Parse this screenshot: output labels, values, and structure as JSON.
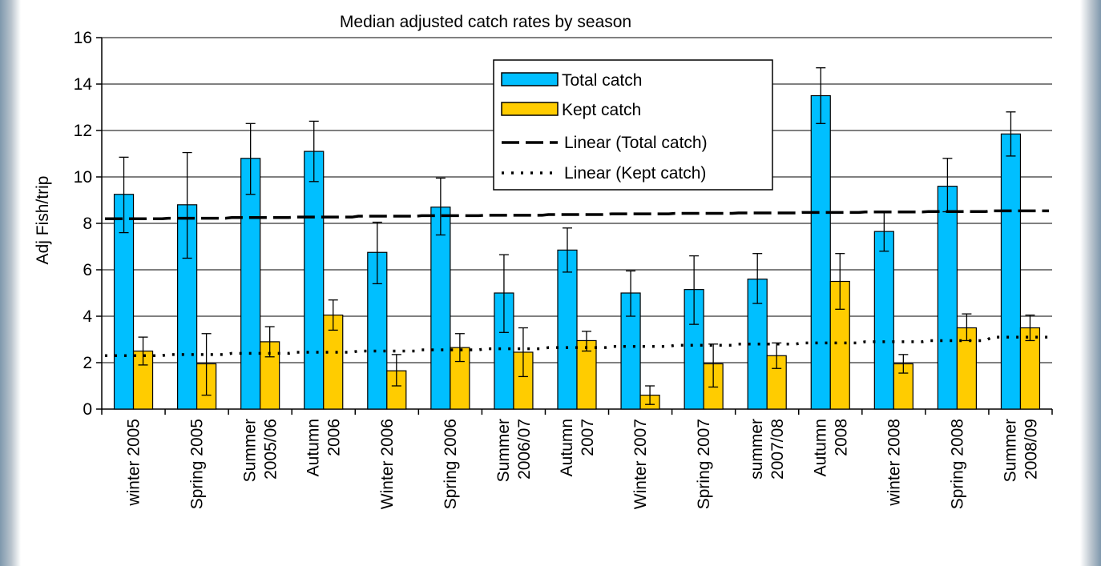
{
  "chart_data": {
    "type": "bar",
    "title": "Median adjusted catch rates by season",
    "xlabel": "",
    "ylabel": "Adj Fish/trip",
    "ylim": [
      0,
      16
    ],
    "yticks": [
      0,
      2,
      4,
      6,
      8,
      10,
      12,
      14,
      16
    ],
    "grid": true,
    "legend_position": "top-right (inside plot)",
    "categories": [
      [
        "winter 2005"
      ],
      [
        "Spring 2005"
      ],
      [
        "Summer",
        "2005/06"
      ],
      [
        "Autumn",
        "2006"
      ],
      [
        "Winter 2006"
      ],
      [
        "Spring 2006"
      ],
      [
        "Summer",
        "2006/07"
      ],
      [
        "Autumn",
        "2007"
      ],
      [
        "Winter 2007"
      ],
      [
        "Spring 2007"
      ],
      [
        "summer",
        "2007/08"
      ],
      [
        "Autumn",
        "2008"
      ],
      [
        "winter 2008"
      ],
      [
        "Spring 2008"
      ],
      [
        "Summer",
        "2008/09"
      ]
    ],
    "series": [
      {
        "name": "Total catch",
        "color": "#00bfff",
        "values": [
          9.25,
          8.8,
          10.8,
          11.1,
          6.75,
          8.7,
          5.0,
          6.85,
          5.0,
          5.15,
          5.6,
          13.5,
          7.65,
          9.6,
          11.85
        ],
        "error_low": [
          7.6,
          6.5,
          9.25,
          9.8,
          5.4,
          7.5,
          3.3,
          5.9,
          4.0,
          3.65,
          4.55,
          12.3,
          6.8,
          8.5,
          10.9
        ],
        "error_high": [
          10.85,
          11.05,
          12.3,
          12.4,
          8.05,
          9.95,
          6.65,
          7.8,
          5.95,
          6.6,
          6.7,
          14.7,
          8.5,
          10.8,
          12.8
        ]
      },
      {
        "name": "Kept catch",
        "color": "#ffcc00",
        "values": [
          2.5,
          1.95,
          2.9,
          4.05,
          1.65,
          2.65,
          2.45,
          2.95,
          0.6,
          1.95,
          2.3,
          5.5,
          1.95,
          3.5,
          3.5
        ],
        "error_low": [
          1.9,
          0.6,
          2.25,
          3.4,
          1.0,
          2.05,
          1.4,
          2.5,
          0.2,
          0.95,
          1.75,
          4.3,
          1.55,
          2.95,
          2.95
        ],
        "error_high": [
          3.1,
          3.25,
          3.55,
          4.7,
          2.35,
          3.25,
          3.5,
          3.35,
          1.0,
          2.8,
          2.85,
          6.7,
          2.35,
          4.1,
          4.05
        ]
      }
    ],
    "trendlines": [
      {
        "name": "Linear (Total catch)",
        "style": "long-dash",
        "values": [
          8.2,
          8.22,
          8.25,
          8.27,
          8.31,
          8.33,
          8.35,
          8.38,
          8.41,
          8.43,
          8.45,
          8.47,
          8.49,
          8.51,
          8.54
        ]
      },
      {
        "name": "Linear (Kept catch)",
        "style": "dotted",
        "values": [
          2.3,
          2.35,
          2.4,
          2.45,
          2.5,
          2.55,
          2.6,
          2.65,
          2.7,
          2.75,
          2.8,
          2.85,
          2.9,
          2.95,
          3.1
        ]
      }
    ]
  }
}
